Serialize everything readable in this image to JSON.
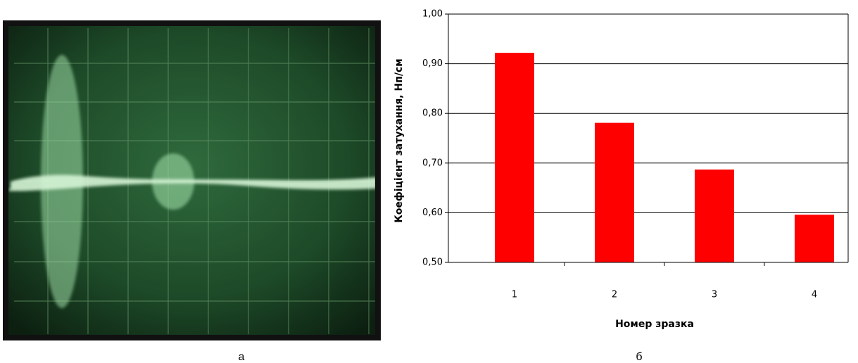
{
  "chart_data": {
    "type": "bar",
    "y_label": "Коефіцієнт затухання, Нп/см",
    "x_label": "Номер зразка",
    "categories": [
      "1",
      "2",
      "3",
      "4"
    ],
    "values": [
      0.922,
      0.781,
      0.687,
      0.596
    ],
    "color": "#ff0000",
    "ylim": [
      0.5,
      1.0
    ],
    "yticks": [
      {
        "value": 0.5,
        "label": "0,50"
      },
      {
        "value": 0.6,
        "label": "0,60"
      },
      {
        "value": 0.7,
        "label": "0,70"
      },
      {
        "value": 0.8,
        "label": "0,80"
      },
      {
        "value": 0.9,
        "label": "0,90"
      },
      {
        "value": 1.0,
        "label": "1,00"
      }
    ],
    "grid": true
  },
  "panel_labels": [
    "а",
    "б"
  ]
}
